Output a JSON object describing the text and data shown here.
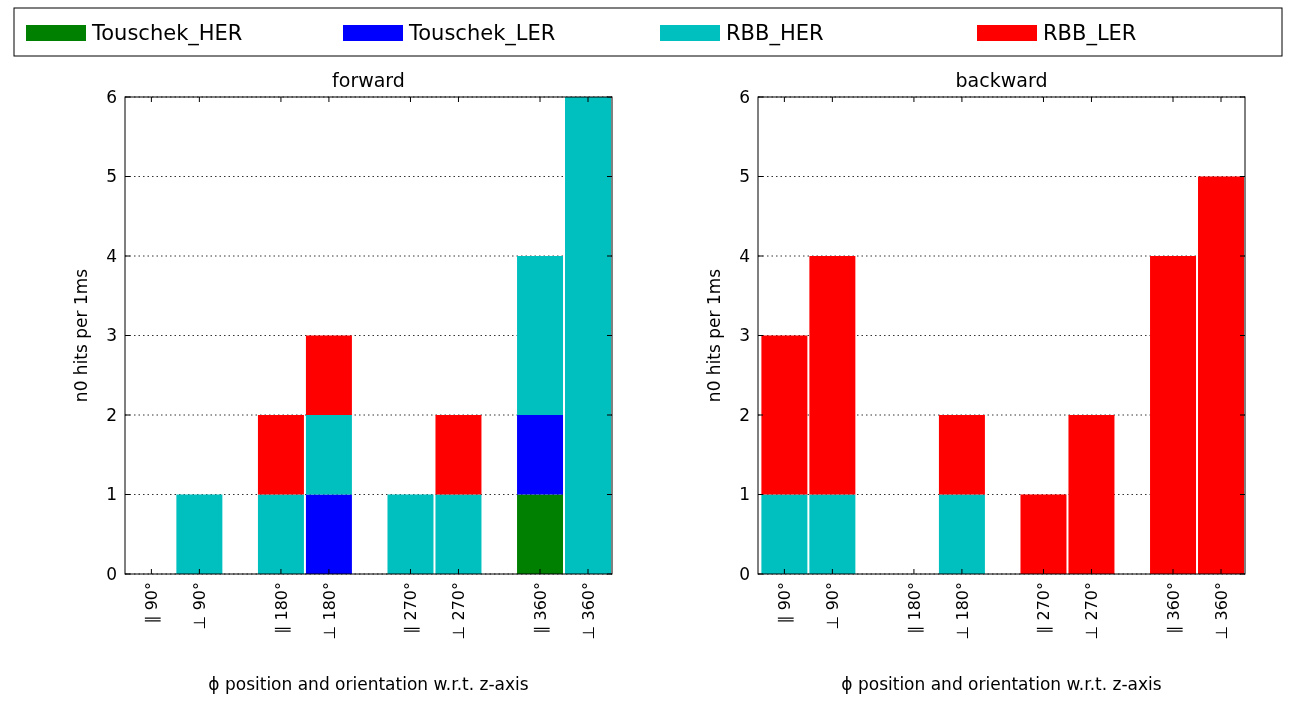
{
  "chart_data": [
    {
      "type": "bar",
      "title": "forward",
      "xlabel": "ϕ position and orientation w.r.t. z-axis",
      "ylabel": "n0 hits per 1ms",
      "stacked": true,
      "categories": [
        "∥ 90°",
        "⊥ 90°",
        "∥ 180°",
        "⊥ 180°",
        "∥ 270°",
        "⊥ 270°",
        "∥ 360°",
        "⊥ 360°"
      ],
      "series": [
        {
          "name": "Touschek_HER",
          "color": "#008000",
          "values": [
            0,
            0,
            0,
            0,
            0,
            0,
            1,
            0
          ]
        },
        {
          "name": "Touschek_LER",
          "color": "#0000ff",
          "values": [
            0,
            0,
            0,
            1,
            0,
            0,
            1,
            0
          ]
        },
        {
          "name": "RBB_HER",
          "color": "#00bfbf",
          "values": [
            0,
            1,
            1,
            1,
            1,
            1,
            2,
            6
          ]
        },
        {
          "name": "RBB_LER",
          "color": "#ff0000",
          "values": [
            0,
            0,
            1,
            1,
            0,
            1,
            0,
            0
          ]
        }
      ],
      "ylim": [
        0,
        6
      ],
      "yticks": [
        0,
        1,
        2,
        3,
        4,
        5,
        6
      ],
      "grid": "y",
      "legend": "top"
    },
    {
      "type": "bar",
      "title": "backward",
      "xlabel": "ϕ position and orientation w.r.t. z-axis",
      "ylabel": "n0 hits per 1ms",
      "stacked": true,
      "categories": [
        "∥ 90°",
        "⊥ 90°",
        "∥ 180°",
        "⊥ 180°",
        "∥ 270°",
        "⊥ 270°",
        "∥ 360°",
        "⊥ 360°"
      ],
      "series": [
        {
          "color": "#008000",
          "values": [
            0,
            0,
            0,
            0,
            0,
            0,
            0,
            0
          ]
        },
        {
          "color": "#0000ff",
          "values": [
            0,
            0,
            0,
            0,
            0,
            0,
            0,
            0
          ]
        },
        {
          "color": "#00bfbf",
          "values": [
            1,
            1,
            0,
            1,
            0,
            0,
            0,
            0
          ]
        },
        {
          "color": "#ff0000",
          "values": [
            2,
            3,
            0,
            1,
            1,
            2,
            4,
            5
          ]
        }
      ],
      "ylim": [
        0,
        6
      ],
      "yticks": [
        0,
        1,
        2,
        3,
        4,
        5,
        6
      ],
      "grid": "y"
    }
  ]
}
